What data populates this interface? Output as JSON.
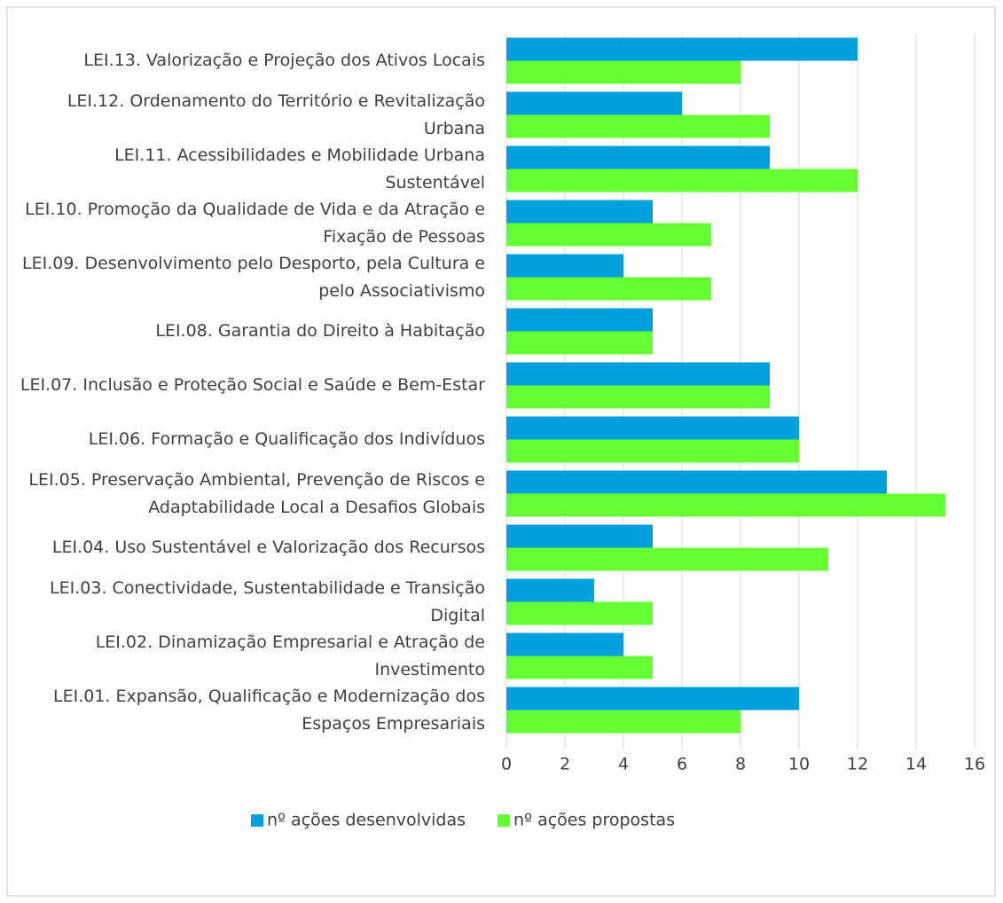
{
  "chart_data": {
    "type": "barh",
    "categories": [
      "LEI.13. Valorização e Projeção dos Ativos Locais",
      "LEI.12. Ordenamento do Território e Revitalização Urbana",
      "LEI.11. Acessibilidades e Mobilidade Urbana Sustentável",
      "LEI.10. Promoção da Qualidade de Vida e da Atração e Fixação de Pessoas",
      "LEI.09. Desenvolvimento pelo Desporto, pela Cultura e pelo Associativismo",
      "LEI.08. Garantia do Direito à Habitação",
      "LEI.07. Inclusão e Proteção Social e Saúde e Bem-Estar",
      "LEI.06. Formação e Qualificação dos Indivíduos",
      "LEI.05. Preservação Ambiental, Prevenção de Riscos e Adaptabilidade Local a Desafios Globais",
      "LEI.04. Uso Sustentável e Valorização dos Recursos",
      "LEI.03. Conectividade, Sustentabilidade e Transição Digital",
      "LEI.02. Dinamização Empresarial e Atração de Investimento",
      "LEI.01. Expansão, Qualificação e Modernização dos Espaços Empresariais"
    ],
    "series": [
      {
        "name": "nº ações desenvolvidas",
        "color": "#00a0dc",
        "values": [
          12,
          6,
          9,
          5,
          4,
          5,
          9,
          10,
          13,
          5,
          3,
          4,
          10
        ]
      },
      {
        "name": "nº ações propostas",
        "color": "#66ff33",
        "values": [
          8,
          9,
          12,
          7,
          7,
          5,
          9,
          10,
          15,
          11,
          5,
          5,
          8
        ]
      }
    ],
    "xlim": [
      0,
      16
    ],
    "xticks": [
      0,
      2,
      4,
      6,
      8,
      10,
      12,
      14,
      16
    ],
    "grid": true,
    "legend": "bottom"
  }
}
